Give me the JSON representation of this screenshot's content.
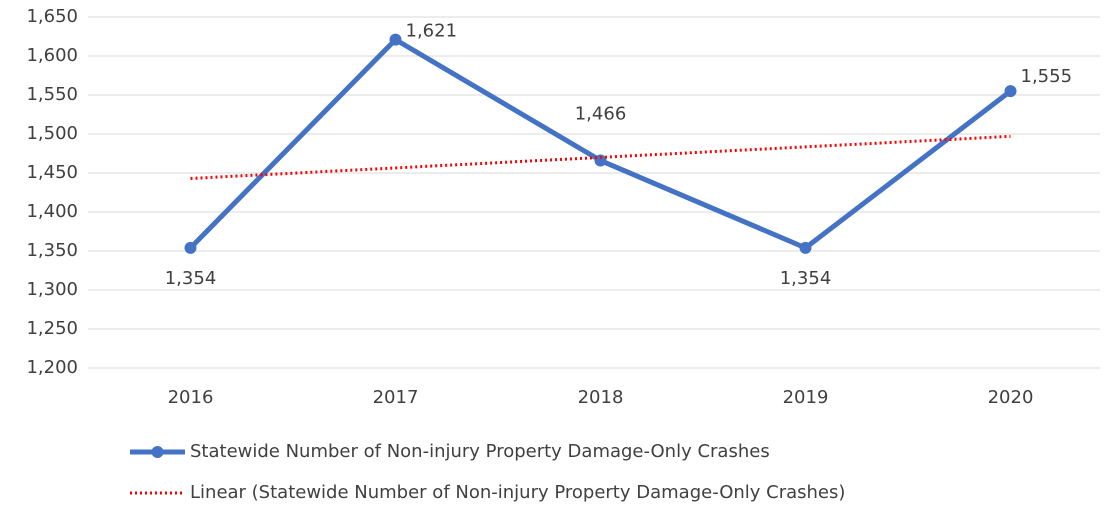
{
  "chart_data": {
    "type": "line",
    "categories": [
      "2016",
      "2017",
      "2018",
      "2019",
      "2020"
    ],
    "series": [
      {
        "name": "Statewide Number of Non-injury Property Damage-Only Crashes",
        "color": "#4472c4",
        "values": [
          1354,
          1621,
          1466,
          1354,
          1555
        ],
        "value_labels": [
          "1,354",
          "1,621",
          "1,466",
          "1,354",
          "1,555"
        ]
      },
      {
        "name": "Linear (Statewide Number of Non-injury Property Damage-Only Crashes)",
        "color": "#ff0000",
        "trendline": true,
        "values": [
          1443,
          1456.5,
          1470,
          1483.5,
          1497
        ]
      }
    ],
    "ylim": [
      1200,
      1650
    ],
    "yticks": [
      {
        "value": 1200,
        "label": "1,200"
      },
      {
        "value": 1250,
        "label": "1,250"
      },
      {
        "value": 1300,
        "label": "1,300"
      },
      {
        "value": 1350,
        "label": "1,350"
      },
      {
        "value": 1400,
        "label": "1,400"
      },
      {
        "value": 1450,
        "label": "1,450"
      },
      {
        "value": 1500,
        "label": "1,500"
      },
      {
        "value": 1550,
        "label": "1,550"
      },
      {
        "value": 1600,
        "label": "1,600"
      },
      {
        "value": 1650,
        "label": "1,650"
      }
    ],
    "grid": true,
    "legend": "bottom"
  }
}
